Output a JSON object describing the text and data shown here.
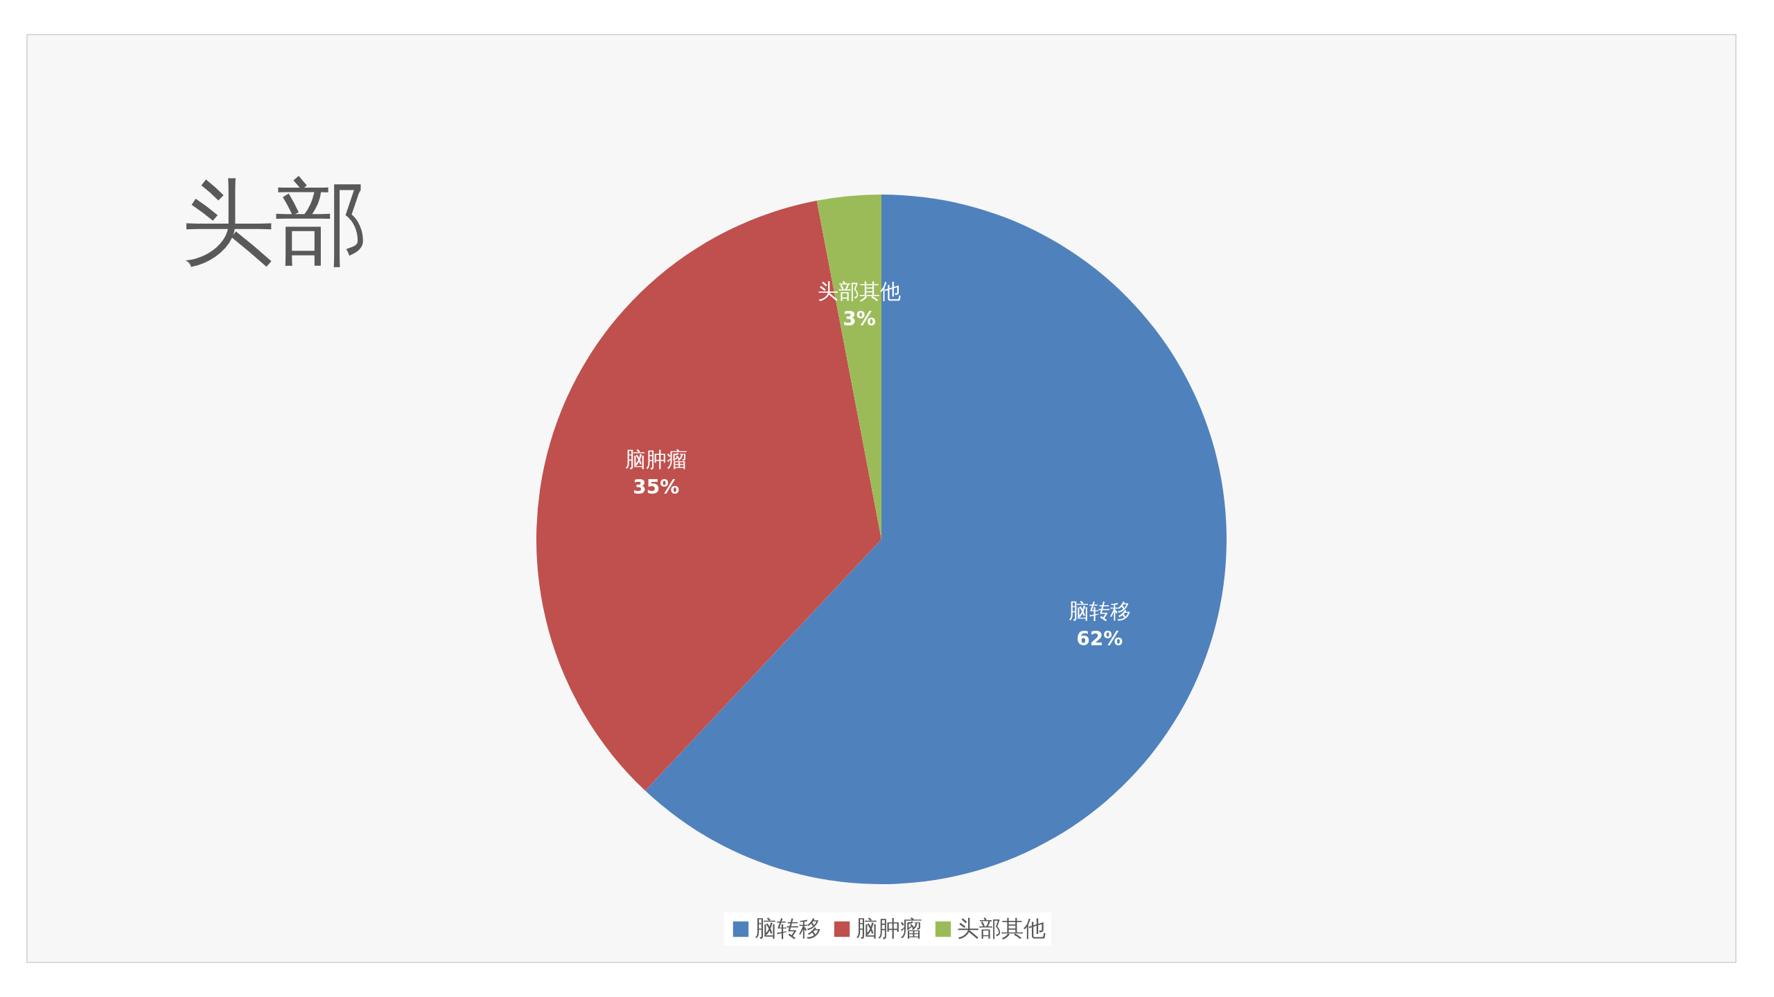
{
  "chart_data": {
    "type": "pie",
    "title": "头部",
    "categories": [
      "脑转移",
      "脑肿瘤",
      "头部其他"
    ],
    "values": [
      62,
      35,
      3
    ],
    "value_labels": [
      "62%",
      "35%",
      "3%"
    ],
    "colors": [
      "#4f81bd",
      "#c0504d",
      "#9bbb59"
    ],
    "legend": "bottom"
  }
}
